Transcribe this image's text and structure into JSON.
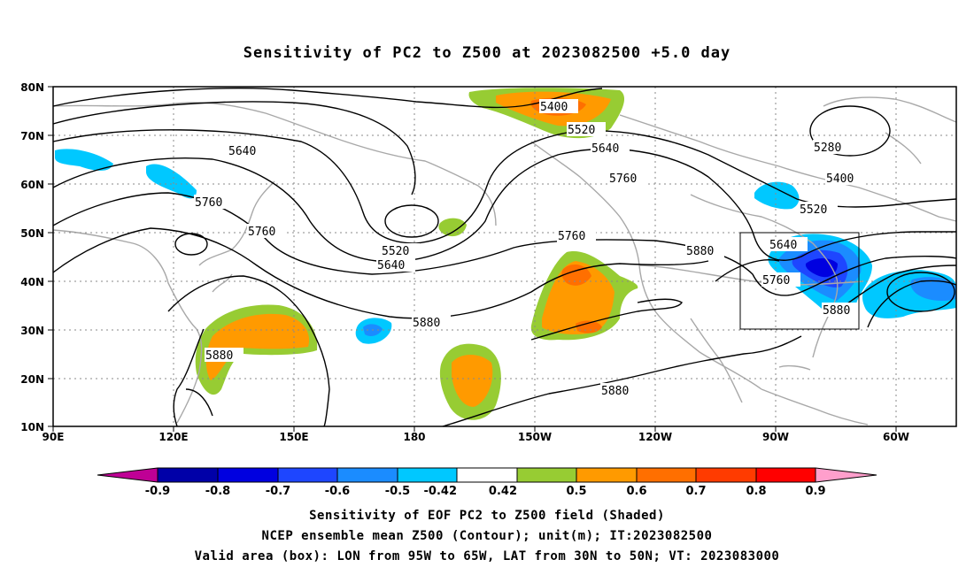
{
  "title": "Sensitivity of PC2 to Z500 at 2023082500 +5.0 day",
  "axes": {
    "lon_labels": [
      "90E",
      "120E",
      "150E",
      "180",
      "150W",
      "120W",
      "90W",
      "60W"
    ],
    "lat_labels": [
      "80N",
      "70N",
      "60N",
      "50N",
      "40N",
      "30N",
      "20N",
      "10N"
    ]
  },
  "contour_labels": [
    "5640",
    "5760",
    "5760",
    "5520",
    "5640",
    "5880",
    "5880",
    "5880",
    "5400",
    "5520",
    "5640",
    "5760",
    "5760",
    "5880",
    "5280",
    "5400",
    "5520",
    "5640",
    "5760",
    "5880"
  ],
  "colorbar": {
    "labels": [
      "-0.9",
      "-0.8",
      "-0.7",
      "-0.6",
      "-0.5",
      "-0.42",
      "0.42",
      "0.5",
      "0.6",
      "0.7",
      "0.8",
      "0.9"
    ],
    "colors": [
      "#bf0095",
      "#0000a8",
      "#0000e0",
      "#1e46ff",
      "#1b8cff",
      "#00c8ff",
      "#ffffff",
      "#97cc33",
      "#ff9a00",
      "#ff6f00",
      "#ff3b00",
      "#ff0000",
      "#ff9fcc"
    ]
  },
  "valid_box": {
    "lon_from": "95W",
    "lon_to": "65W",
    "lat_from": "30N",
    "lat_to": "50N"
  },
  "captions": {
    "line1": "Sensitivity of EOF PC2 to Z500 field (Shaded)",
    "line2": "NCEP ensemble mean Z500 (Contour); unit(m); IT:2023082500",
    "line3": "Valid area (box): LON from 95W to 65W, LAT from 30N to 50N; VT: 2023083000"
  }
}
